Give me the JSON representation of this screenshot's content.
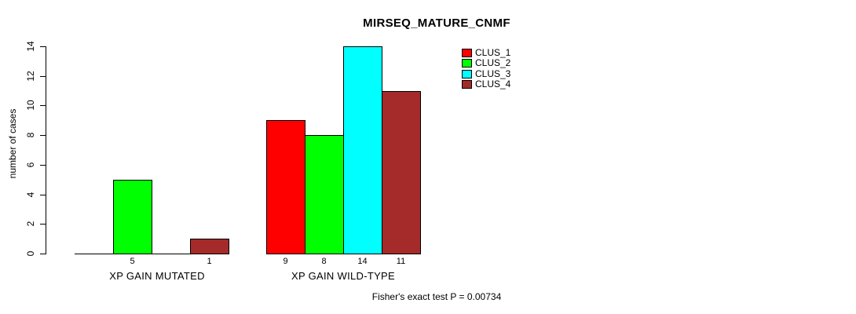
{
  "page": {
    "background": "#FFFFFF"
  },
  "chart_data": {
    "type": "bar",
    "title": "MIRSEQ_MATURE_CNMF",
    "ylabel": "number of cases",
    "xlabel": "",
    "ylim": [
      0,
      14
    ],
    "yticks": [
      0,
      2,
      4,
      6,
      8,
      10,
      12,
      14
    ],
    "grid": false,
    "legend_position": "top-right",
    "series_names": [
      "CLUS_1",
      "CLUS_2",
      "CLUS_3",
      "CLUS_4"
    ],
    "series_colors": [
      "#FF0000",
      "#00FF00",
      "#00FFFF",
      "#A52A2A"
    ],
    "categories": [
      "XP GAIN MUTATED",
      "XP GAIN WILD-TYPE"
    ],
    "groups": [
      {
        "label": "XP GAIN MUTATED",
        "values": [
          0,
          5,
          0,
          1
        ],
        "bar_labels": [
          "",
          "5",
          "",
          "1"
        ]
      },
      {
        "label": "XP GAIN WILD-TYPE",
        "values": [
          9,
          8,
          14,
          11
        ],
        "bar_labels": [
          "9",
          "8",
          "14",
          "11"
        ]
      }
    ],
    "annotation": "Fisher's exact test P = 0.00734"
  }
}
